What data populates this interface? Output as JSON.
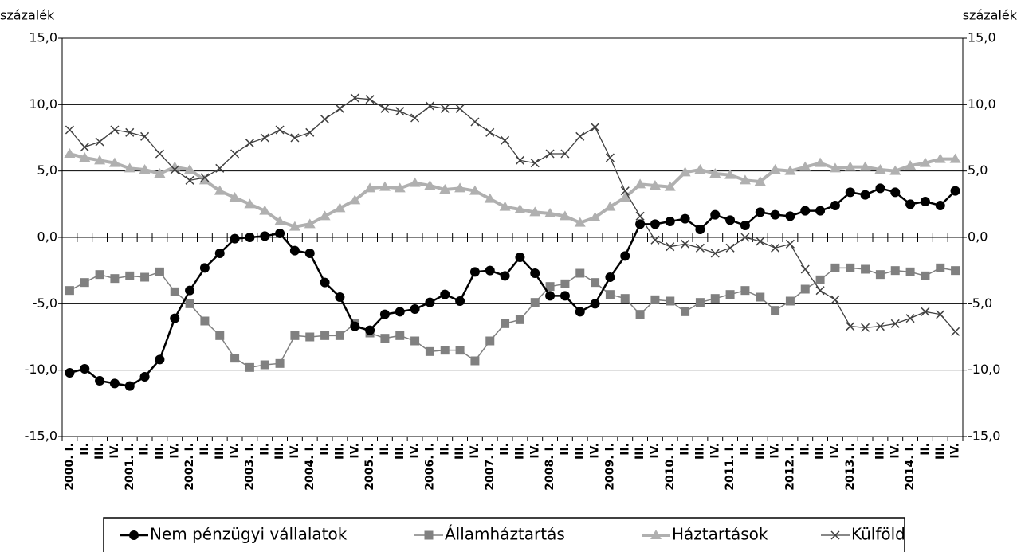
{
  "chart_data": {
    "type": "line",
    "y_label": "százalék",
    "y2_label": "százalék",
    "categories": [
      "2000. I.",
      "II.",
      "III.",
      "IV.",
      "2001. I.",
      "II.",
      "III.",
      "IV.",
      "2002. I.",
      "II.",
      "III.",
      "IV.",
      "2003. I.",
      "II.",
      "III.",
      "IV.",
      "2004. I.",
      "II.",
      "III.",
      "IV.",
      "2005. I.",
      "II.",
      "III.",
      "IV.",
      "2006. I.",
      "II.",
      "III.",
      "IV.",
      "2007. I.",
      "II.",
      "III.",
      "IV.",
      "2008. I.",
      "II.",
      "III.",
      "IV.",
      "2009. I.",
      "II.",
      "III.",
      "IV.",
      "2010. I.",
      "II.",
      "III.",
      "IV.",
      "2011. I.",
      "II.",
      "III.",
      "IV.",
      "2012. I.",
      "II.",
      "III.",
      "IV.",
      "2013. I.",
      "II.",
      "III.",
      "IV.",
      "2014. I.",
      "II.",
      "III.",
      "IV."
    ],
    "series": [
      {
        "name": "Nem pénzügyi vállalatok",
        "color": "#000000",
        "marker": "circle",
        "values": [
          -10.2,
          -9.9,
          -10.8,
          -11.0,
          -11.2,
          -10.5,
          -9.2,
          -6.1,
          -4.0,
          -2.3,
          -1.2,
          -0.1,
          0.0,
          0.1,
          0.3,
          -1.0,
          -1.2,
          -3.4,
          -4.5,
          -6.7,
          -7.0,
          -5.8,
          -5.6,
          -5.4,
          -4.9,
          -4.3,
          -4.8,
          -2.6,
          -2.5,
          -2.9,
          -1.5,
          -2.7,
          -4.4,
          -4.4,
          -5.6,
          -5.0,
          -3.0,
          -1.4,
          1.0,
          1.0,
          1.2,
          1.4,
          0.6,
          1.7,
          1.3,
          0.9,
          1.9,
          1.7,
          1.6,
          2.0,
          2.0,
          2.4,
          3.4,
          3.2,
          3.7,
          3.4,
          2.5,
          2.7,
          2.4,
          3.5
        ]
      },
      {
        "name": "Államháztartás",
        "color": "#808080",
        "marker": "square",
        "values": [
          -4.0,
          -3.4,
          -2.8,
          -3.1,
          -2.9,
          -3.0,
          -2.6,
          -4.1,
          -5.0,
          -6.3,
          -7.4,
          -9.1,
          -9.8,
          -9.6,
          -9.5,
          -7.4,
          -7.5,
          -7.4,
          -7.4,
          -6.5,
          -7.2,
          -7.6,
          -7.4,
          -7.8,
          -8.6,
          -8.5,
          -8.5,
          -9.3,
          -7.8,
          -6.5,
          -6.2,
          -4.9,
          -3.7,
          -3.5,
          -2.7,
          -3.4,
          -4.3,
          -4.6,
          -5.8,
          -4.7,
          -4.8,
          -5.6,
          -4.9,
          -4.6,
          -4.3,
          -4.0,
          -4.5,
          -5.5,
          -4.8,
          -3.9,
          -3.2,
          -2.3,
          -2.3,
          -2.4,
          -2.8,
          -2.5,
          -2.6,
          -2.9,
          -2.3,
          -2.5
        ]
      },
      {
        "name": "Háztartások",
        "color": "#b0b0b0",
        "marker": "triangle",
        "values": [
          6.3,
          6.0,
          5.8,
          5.6,
          5.2,
          5.1,
          4.8,
          5.3,
          5.1,
          4.3,
          3.5,
          3.0,
          2.5,
          2.0,
          1.2,
          0.8,
          1.0,
          1.6,
          2.2,
          2.8,
          3.7,
          3.8,
          3.7,
          4.1,
          3.9,
          3.6,
          3.7,
          3.5,
          2.9,
          2.3,
          2.1,
          1.9,
          1.8,
          1.6,
          1.1,
          1.5,
          2.3,
          3.0,
          4.0,
          3.9,
          3.8,
          4.9,
          5.1,
          4.8,
          4.7,
          4.3,
          4.2,
          5.1,
          5.0,
          5.3,
          5.6,
          5.2,
          5.3,
          5.3,
          5.1,
          5.0,
          5.4,
          5.6,
          5.9,
          5.9
        ]
      },
      {
        "name": "Külföld",
        "color": "#404040",
        "marker": "x",
        "values": [
          8.1,
          6.8,
          7.2,
          8.1,
          7.9,
          7.6,
          6.3,
          5.1,
          4.3,
          4.5,
          5.2,
          6.3,
          7.1,
          7.5,
          8.1,
          7.5,
          7.9,
          8.9,
          9.7,
          10.5,
          10.4,
          9.7,
          9.5,
          9.0,
          9.9,
          9.7,
          9.7,
          8.7,
          7.9,
          7.3,
          5.8,
          5.6,
          6.3,
          6.3,
          7.6,
          8.3,
          6.0,
          3.5,
          1.6,
          -0.2,
          -0.7,
          -0.5,
          -0.8,
          -1.2,
          -0.8,
          0.0,
          -0.3,
          -0.8,
          -0.5,
          -2.4,
          -4.0,
          -4.7,
          -6.7,
          -6.8,
          -6.7,
          -6.5,
          -6.1,
          -5.6,
          -5.8,
          -7.1
        ]
      }
    ],
    "ylim": [
      -15,
      15
    ],
    "yticks": [
      {
        "value": -15,
        "label": "-15,0"
      },
      {
        "value": -10,
        "label": "-10,0"
      },
      {
        "value": -5,
        "label": "-5,0"
      },
      {
        "value": 0,
        "label": "0,0"
      },
      {
        "value": 5,
        "label": "5,0"
      },
      {
        "value": 10,
        "label": "10,0"
      },
      {
        "value": 15,
        "label": "15,0"
      }
    ],
    "grid": true,
    "legend": "bottom"
  }
}
